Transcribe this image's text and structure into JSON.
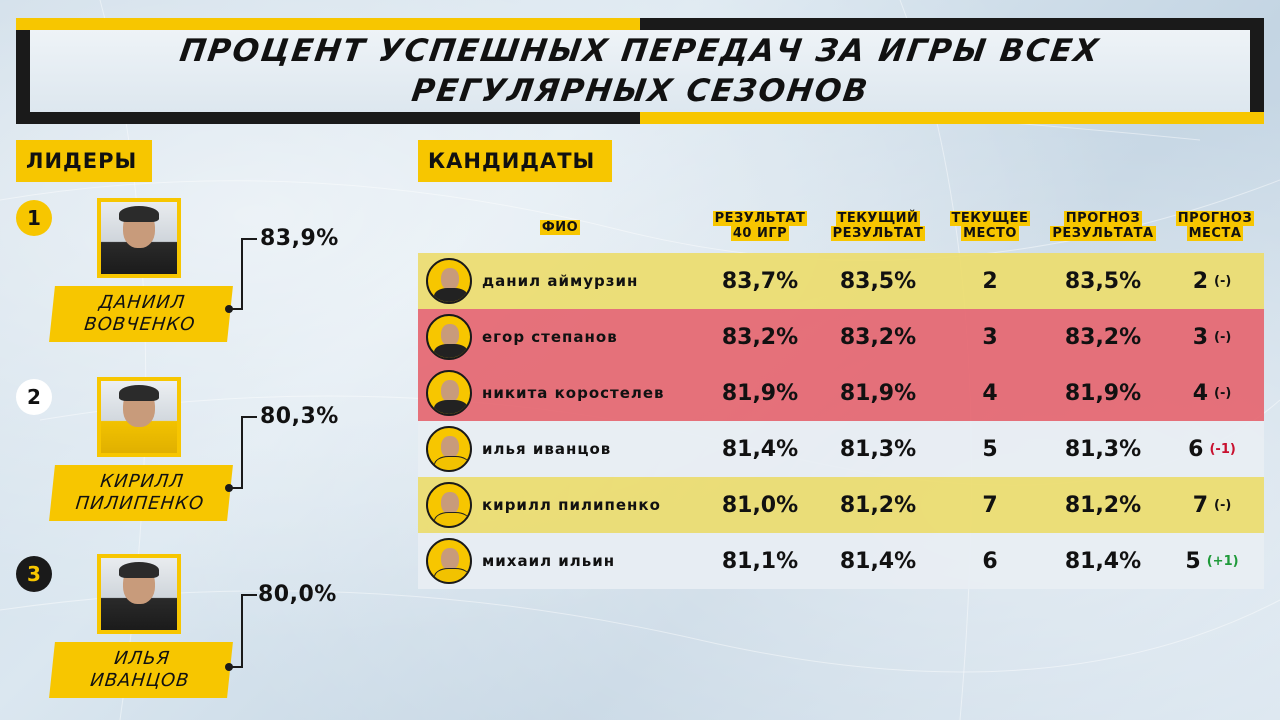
{
  "header": {
    "line1": "процент успешных передач за игры всех",
    "line2": "регулярных сезонов"
  },
  "colors": {
    "accent": "#f7c600",
    "dark": "#1a1a1a",
    "red_row": "#e56670",
    "yellow_row": "#ecdc6e",
    "down": "#c8102e",
    "up": "#1f9a3a"
  },
  "leaders": {
    "title": "лидеры",
    "items": [
      {
        "rank": "1",
        "first": "даниил",
        "last": "вовченко",
        "value": "83,9%"
      },
      {
        "rank": "2",
        "first": "кирилл",
        "last": "пилипенко",
        "value": "80,3%"
      },
      {
        "rank": "3",
        "first": "илья",
        "last": "иванцов",
        "value": "80,0%"
      }
    ]
  },
  "candidates": {
    "title": "кандидаты",
    "columns": {
      "name": "фио",
      "result40_a": "результат",
      "result40_b": "40 игр",
      "current_a": "текущий",
      "current_b": "результат",
      "place_a": "текущее",
      "place_b": "место",
      "forecast_a": "прогноз",
      "forecast_b": "результата",
      "forecast_place_a": "прогноз",
      "forecast_place_b": "места"
    },
    "rows": [
      {
        "name": "данил аймурзин",
        "r40": "83,7%",
        "cur": "83,5%",
        "place": "2",
        "fres": "83,5%",
        "fplace": "2",
        "delta": "(-)",
        "delta_type": "neutral",
        "color": "yellow"
      },
      {
        "name": "егор степанов",
        "r40": "83,2%",
        "cur": "83,2%",
        "place": "3",
        "fres": "83,2%",
        "fplace": "3",
        "delta": "(-)",
        "delta_type": "neutral",
        "color": "red"
      },
      {
        "name": "никита коростелев",
        "r40": "81,9%",
        "cur": "81,9%",
        "place": "4",
        "fres": "81,9%",
        "fplace": "4",
        "delta": "(-)",
        "delta_type": "neutral",
        "color": "red"
      },
      {
        "name": "илья иванцов",
        "r40": "81,4%",
        "cur": "81,3%",
        "place": "5",
        "fres": "81,3%",
        "fplace": "6",
        "delta": "(-1)",
        "delta_type": "down",
        "color": "white"
      },
      {
        "name": "кирилл пилипенко",
        "r40": "81,0%",
        "cur": "81,2%",
        "place": "7",
        "fres": "81,2%",
        "fplace": "7",
        "delta": "(-)",
        "delta_type": "neutral",
        "color": "yellow"
      },
      {
        "name": "михаил ильин",
        "r40": "81,1%",
        "cur": "81,4%",
        "place": "6",
        "fres": "81,4%",
        "fplace": "5",
        "delta": "(+1)",
        "delta_type": "up",
        "color": "white"
      }
    ]
  }
}
